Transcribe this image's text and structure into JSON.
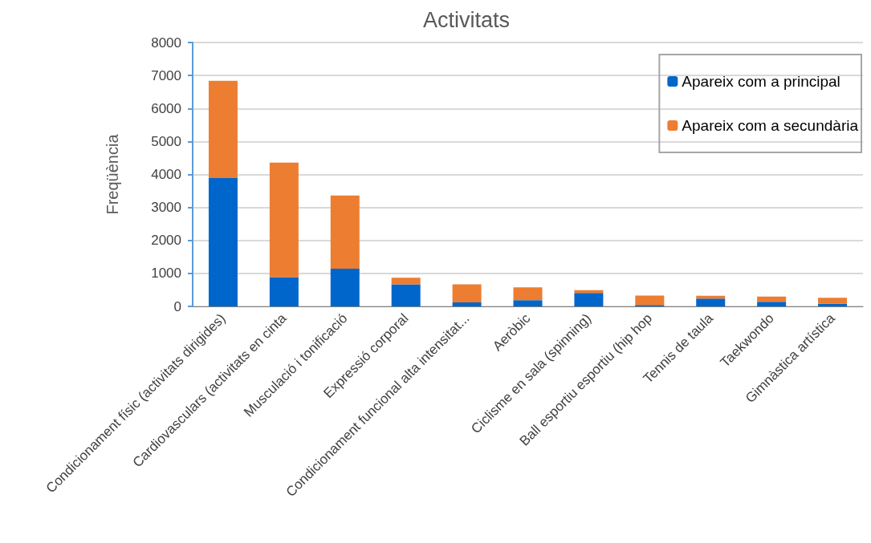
{
  "chart_data": {
    "type": "bar",
    "title": "Activitats",
    "ylabel": "Freqüència",
    "categories": [
      "Condicionament físic (activitats dirigides)",
      "Cardiovasculars (activitats en cinta",
      "Musculació i tonificació",
      "Expressió corporal",
      "Condicionament funcional alta intensitat...",
      "Aeròbic",
      "Ciclisme en sala (spinning)",
      "Ball esportiu esportiu (hip hop",
      "Tennis de taula",
      "Taekwondo",
      "Gimnàstica artística"
    ],
    "series": [
      {
        "name": "Apareix com a principal",
        "color": "#0066cc",
        "values": [
          3890,
          890,
          1140,
          670,
          120,
          190,
          410,
          40,
          240,
          140,
          80
        ]
      },
      {
        "name": "Apareix com a secundària",
        "color": "#ed7d31",
        "values": [
          2950,
          3470,
          2220,
          200,
          550,
          390,
          80,
          290,
          80,
          160,
          180
        ]
      }
    ],
    "stacked": true,
    "ylim": [
      0,
      8000
    ],
    "yticks": [
      0,
      1000,
      2000,
      3000,
      4000,
      5000,
      6000,
      7000,
      8000
    ],
    "grid": "y",
    "legend": "top right"
  }
}
